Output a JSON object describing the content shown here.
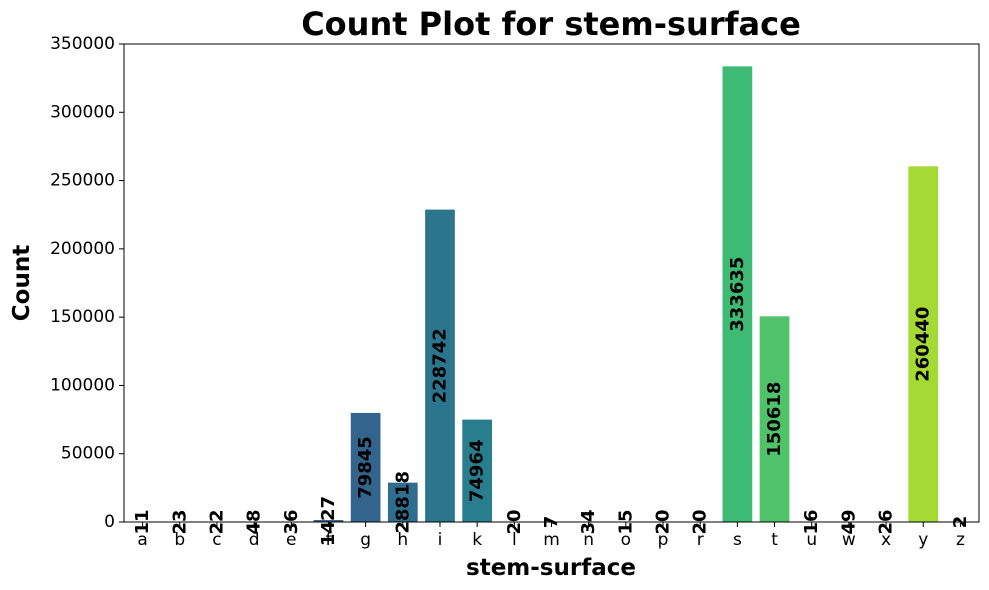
{
  "chart_data": {
    "type": "bar",
    "title": "Count Plot for stem-surface",
    "xlabel": "stem-surface",
    "ylabel": "Count",
    "categories": [
      "a",
      "b",
      "c",
      "d",
      "e",
      "f",
      "g",
      "h",
      "i",
      "k",
      "l",
      "m",
      "n",
      "o",
      "p",
      "r",
      "s",
      "t",
      "u",
      "w",
      "x",
      "y",
      "z"
    ],
    "values": [
      11,
      23,
      22,
      48,
      36,
      1427,
      79845,
      28818,
      228742,
      74964,
      20,
      7,
      34,
      15,
      20,
      20,
      333635,
      150618,
      16,
      49,
      26,
      260440,
      2
    ],
    "data_labels": [
      "11",
      "23",
      "22",
      "48",
      "36",
      "1427",
      "79845",
      "28818",
      "228742",
      "74964",
      "20",
      "7",
      "34",
      "15",
      "20",
      "20",
      "333635",
      "150618",
      "16",
      "49",
      "26",
      "260440",
      "2"
    ],
    "ylim": [
      0,
      350000
    ],
    "yticks": [
      0,
      50000,
      100000,
      150000,
      200000,
      250000,
      300000,
      350000
    ],
    "ytick_labels": [
      "0",
      "50000",
      "100000",
      "150000",
      "200000",
      "250000",
      "300000",
      "350000"
    ],
    "grid": false,
    "colormap": "viridis"
  }
}
